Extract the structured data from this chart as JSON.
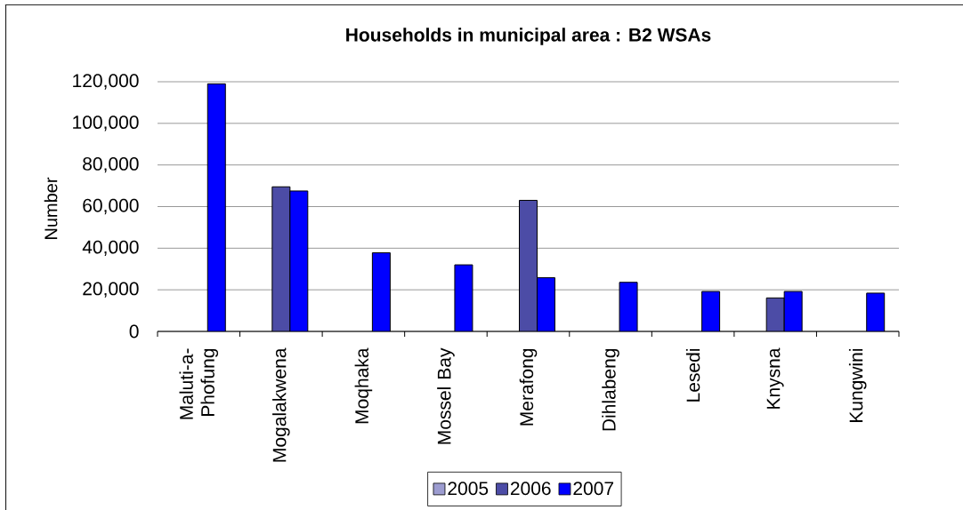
{
  "chart_data": {
    "type": "bar",
    "title": "Households in municipal area : B2 WSAs",
    "ylabel": "Number",
    "categories": [
      "Maluti-a-Phofung",
      "Mogalakwena",
      "Moqhaka",
      "Mossel Bay",
      "Merafong",
      "Dihlabeng",
      "Lesedi",
      "Knysna",
      "Kungwini"
    ],
    "series": [
      {
        "name": "2005",
        "color": "#9c9cd0",
        "values": [
          null,
          null,
          null,
          null,
          null,
          null,
          null,
          null,
          null
        ]
      },
      {
        "name": "2006",
        "color": "#4c4ca6",
        "values": [
          null,
          69500,
          null,
          null,
          63000,
          null,
          null,
          16100,
          null
        ]
      },
      {
        "name": "2007",
        "color": "#0000ff",
        "values": [
          119000,
          67500,
          37800,
          32000,
          25800,
          23600,
          19200,
          19200,
          18400
        ]
      }
    ],
    "ylim": [
      0,
      120000
    ],
    "yticks": [
      0,
      {
        "value": 20000,
        "label": "20,000"
      },
      {
        "value": 40000,
        "label": "40,000"
      },
      {
        "value": 60000,
        "label": "60,000"
      },
      {
        "value": 80000,
        "label": "80,000"
      },
      {
        "value": 100000,
        "label": "100,000"
      },
      {
        "value": 120000,
        "label": "120,000"
      }
    ],
    "grid": "y",
    "legend": "bottom"
  }
}
